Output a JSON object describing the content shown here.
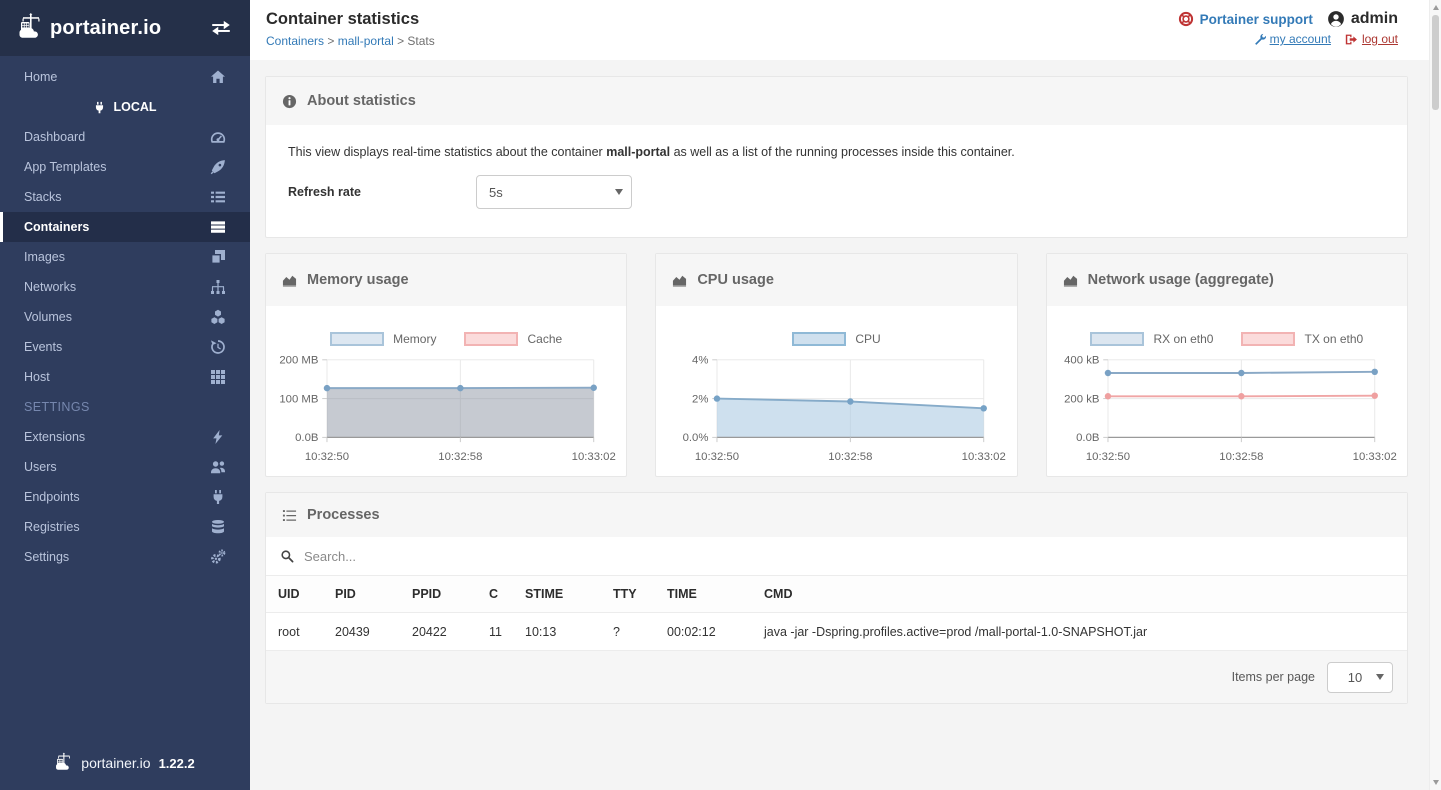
{
  "header": {
    "page_title": "Container statistics",
    "breadcrumb": [
      "Containers",
      "mall-portal",
      "Stats"
    ],
    "support_label": "Portainer support",
    "username": "admin",
    "my_account_label": "my account",
    "log_out_label": "log out"
  },
  "sidebar": {
    "brand": "portainer.io",
    "home": {
      "label": "Home",
      "icon": "home-icon"
    },
    "endpoint": {
      "label": "LOCAL",
      "icon": "plug-icon"
    },
    "items": [
      {
        "label": "Dashboard",
        "icon": "tachometer-icon"
      },
      {
        "label": "App Templates",
        "icon": "rocket-icon"
      },
      {
        "label": "Stacks",
        "icon": "list-icon"
      },
      {
        "label": "Containers",
        "icon": "server-icon",
        "active": true
      },
      {
        "label": "Images",
        "icon": "clone-icon"
      },
      {
        "label": "Networks",
        "icon": "sitemap-icon"
      },
      {
        "label": "Volumes",
        "icon": "cubes-icon"
      },
      {
        "label": "Events",
        "icon": "history-icon"
      },
      {
        "label": "Host",
        "icon": "th-icon"
      }
    ],
    "settings_heading": "SETTINGS",
    "settings_items": [
      {
        "label": "Extensions",
        "icon": "bolt-icon"
      },
      {
        "label": "Users",
        "icon": "users-icon"
      },
      {
        "label": "Endpoints",
        "icon": "plug-icon"
      },
      {
        "label": "Registries",
        "icon": "database-icon"
      },
      {
        "label": "Settings",
        "icon": "cogs-icon"
      }
    ],
    "footer": {
      "brand": "portainer.io",
      "version": "1.22.2"
    }
  },
  "about": {
    "title": "About statistics",
    "description_prefix": "This view displays real-time statistics about the container ",
    "container_name": "mall-portal",
    "description_suffix": " as well as a list of the running processes inside this container.",
    "refresh_rate_label": "Refresh rate",
    "refresh_rate_value": "5s"
  },
  "chart_data": [
    {
      "type": "line",
      "title": "Memory usage",
      "icon": "area-chart-icon",
      "categories": [
        "10:32:50",
        "10:32:58",
        "10:33:02"
      ],
      "ylim": [
        0,
        200
      ],
      "yticks": [
        [
          200,
          "200 MB"
        ],
        [
          100,
          "100 MB"
        ],
        [
          0,
          "0.0B"
        ]
      ],
      "ylabel": "",
      "xlabel": "",
      "grid": true,
      "legend_position": "top",
      "series": [
        {
          "name": "Memory",
          "values": [
            127,
            127,
            128
          ],
          "color": "#8aa9c6",
          "point_color": "#79a1c4",
          "fill": "rgba(128,137,153,0.45)",
          "legend_fill": "#dde7f1",
          "legend_border": "#a9c4da"
        },
        {
          "name": "Cache",
          "values": [
            0,
            0,
            0
          ],
          "color": "#f0a5a5",
          "point_color": "#efa0a0",
          "fill": "rgba(240,165,165,0.3)",
          "legend_fill": "#fbdbdb",
          "legend_border": "#f2b3b3"
        }
      ]
    },
    {
      "type": "line",
      "title": "CPU usage",
      "icon": "area-chart-icon",
      "categories": [
        "10:32:50",
        "10:32:58",
        "10:33:02"
      ],
      "ylim": [
        0,
        4
      ],
      "yticks": [
        [
          4,
          "4%"
        ],
        [
          2,
          "2%"
        ],
        [
          0,
          "0.0%"
        ]
      ],
      "ylabel": "",
      "xlabel": "",
      "grid": true,
      "legend_position": "top",
      "series": [
        {
          "name": "CPU",
          "values": [
            2.0,
            1.85,
            1.5
          ],
          "color": "#86abc9",
          "point_color": "#76a2c6",
          "fill": "rgba(165,199,224,0.55)",
          "legend_fill": "#cfe0ee",
          "legend_border": "#8fb9d6"
        }
      ]
    },
    {
      "type": "line",
      "title": "Network usage (aggregate)",
      "icon": "area-chart-icon",
      "categories": [
        "10:32:50",
        "10:32:58",
        "10:33:02"
      ],
      "ylim": [
        0,
        400
      ],
      "yticks": [
        [
          400,
          "400 kB"
        ],
        [
          200,
          "200 kB"
        ],
        [
          0,
          "0.0B"
        ]
      ],
      "ylabel": "",
      "xlabel": "",
      "grid": true,
      "legend_position": "top",
      "series": [
        {
          "name": "RX on eth0",
          "values": [
            332,
            332,
            338
          ],
          "color": "#8aa9c6",
          "point_color": "#79a1c4",
          "fill": null,
          "legend_fill": "#dce6f0",
          "legend_border": "#a9c4da"
        },
        {
          "name": "TX on eth0",
          "values": [
            212,
            212,
            215
          ],
          "color": "#f0a5a5",
          "point_color": "#efa0a0",
          "fill": null,
          "legend_fill": "#fbdbdb",
          "legend_border": "#f2b3b3"
        }
      ]
    }
  ],
  "processes": {
    "title": "Processes",
    "search_placeholder": "Search...",
    "columns": [
      "UID",
      "PID",
      "PPID",
      "C",
      "STIME",
      "TTY",
      "TIME",
      "CMD"
    ],
    "rows": [
      [
        "root",
        "20439",
        "20422",
        "11",
        "10:13",
        "?",
        "00:02:12",
        "java -jar -Dspring.profiles.active=prod /mall-portal-1.0-SNAPSHOT.jar"
      ]
    ],
    "items_per_page_label": "Items per page",
    "items_per_page_value": "10"
  },
  "colors": {
    "sidebar_bg": "#2f3d5e",
    "sidebar_dark": "#253049",
    "active_item_bg": "#232e49",
    "link_blue": "#337ab7",
    "danger_red": "#bf3434",
    "content_bg": "#f4f4f4"
  }
}
